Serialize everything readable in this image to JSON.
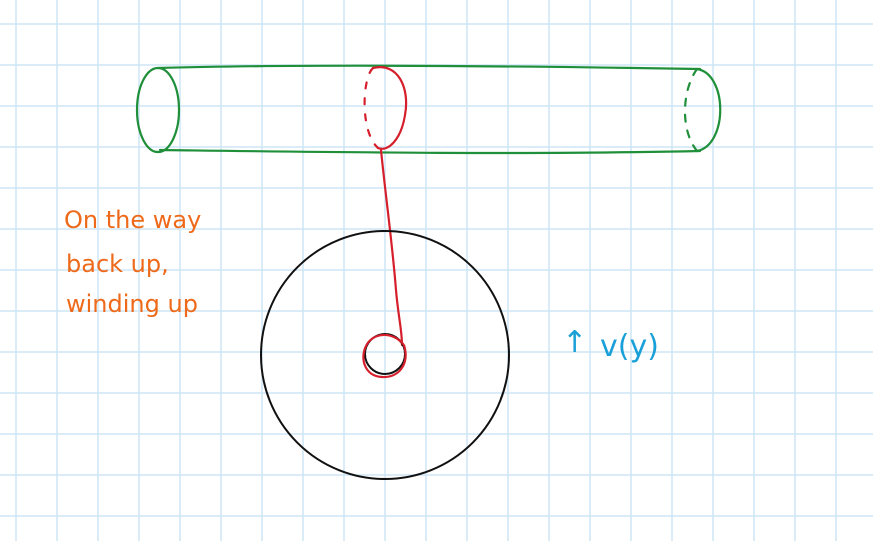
{
  "colors": {
    "grid": "#cde6f5",
    "paper": "#ffffff",
    "cylinder": "#1f8f3a",
    "string": "#d61f2c",
    "wheel": "#111111",
    "note": "#ee6a1a",
    "velocity": "#1aa0d8"
  },
  "annotation": {
    "lines": [
      "On the way",
      "back up,",
      "winding up"
    ]
  },
  "velocity_label": {
    "arrow": "↑",
    "text": "v(y)"
  }
}
